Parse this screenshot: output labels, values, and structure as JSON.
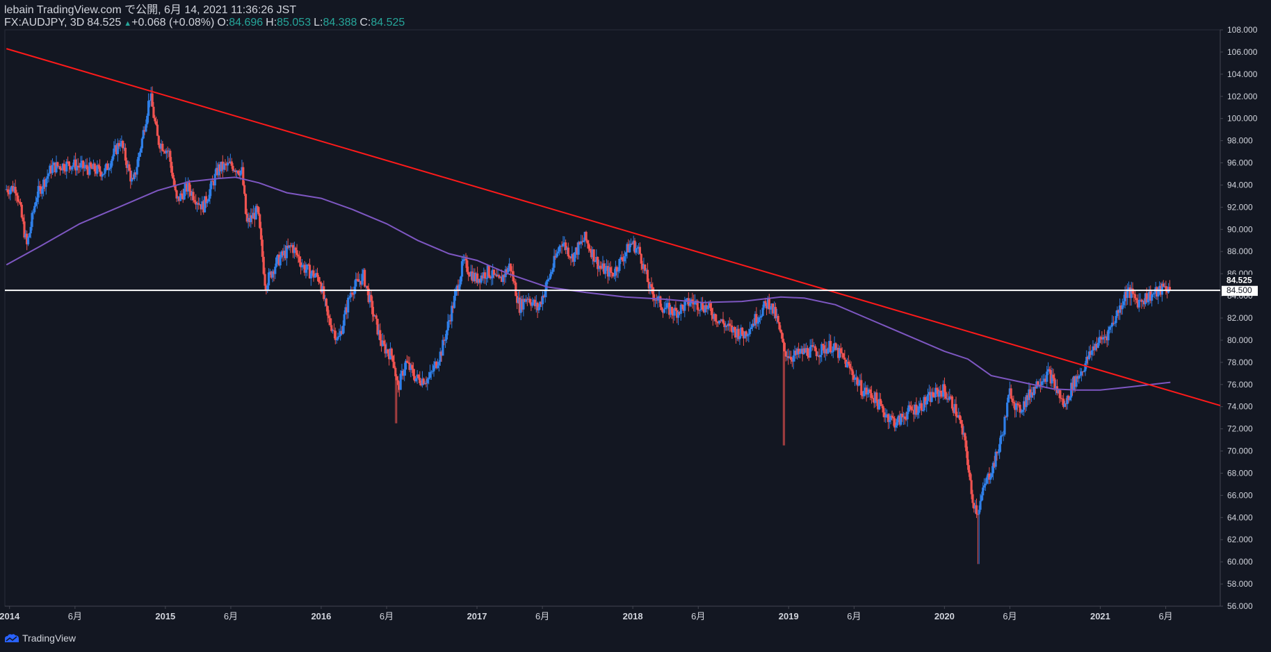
{
  "header": {
    "publish_line": "lebain TradingView.com で公開, 6月 14, 2021 11:36:26 JST",
    "symbol": "FX:AUDJPY, 3D",
    "last": "84.525",
    "change_arrow": "▲",
    "change": "+0.068 (+0.08%)",
    "o_label": "O:",
    "o_value": "84.696",
    "h_label": "H:",
    "h_value": "85.053",
    "l_label": "L:",
    "l_value": "84.388",
    "c_label": "C:",
    "c_value": "84.525"
  },
  "footer": {
    "brand": "TradingView",
    "logo_icon": "tradingview-logo-icon"
  },
  "colors": {
    "background": "#131722",
    "up": "#2f7fe8",
    "down": "#ef5350",
    "ma": "#7e57c2",
    "trendline": "#ff1a1a",
    "hline": "#ffffff",
    "axis_text": "#d1d4dc"
  },
  "chart_data": {
    "type": "candlestick",
    "symbol": "FX:AUDJPY",
    "interval": "3D",
    "ylim": [
      56,
      108
    ],
    "y_ticks": [
      "56.000",
      "58.000",
      "60.000",
      "62.000",
      "64.000",
      "66.000",
      "68.000",
      "70.000",
      "72.000",
      "74.000",
      "76.000",
      "78.000",
      "80.000",
      "82.000",
      "84.000",
      "86.000",
      "88.000",
      "90.000",
      "92.000",
      "94.000",
      "96.000",
      "98.000",
      "100.000",
      "102.000",
      "104.000",
      "106.000",
      "108.000"
    ],
    "x_ticks": [
      {
        "label": "2014",
        "t": 2014.0,
        "bold": true
      },
      {
        "label": "6月",
        "t": 2014.42,
        "bold": false
      },
      {
        "label": "2015",
        "t": 2015.0,
        "bold": true
      },
      {
        "label": "6月",
        "t": 2015.42,
        "bold": false
      },
      {
        "label": "2016",
        "t": 2016.0,
        "bold": true
      },
      {
        "label": "6月",
        "t": 2016.42,
        "bold": false
      },
      {
        "label": "2017",
        "t": 2017.0,
        "bold": true
      },
      {
        "label": "6月",
        "t": 2017.42,
        "bold": false
      },
      {
        "label": "2018",
        "t": 2018.0,
        "bold": true
      },
      {
        "label": "6月",
        "t": 2018.42,
        "bold": false
      },
      {
        "label": "2019",
        "t": 2019.0,
        "bold": true
      },
      {
        "label": "6月",
        "t": 2019.42,
        "bold": false
      },
      {
        "label": "2020",
        "t": 2020.0,
        "bold": true
      },
      {
        "label": "6月",
        "t": 2020.42,
        "bold": false
      },
      {
        "label": "2021",
        "t": 2021.0,
        "bold": true
      },
      {
        "label": "6月",
        "t": 2021.42,
        "bold": false
      }
    ],
    "price_path": [
      [
        2013.98,
        93.6
      ],
      [
        2014.05,
        93.8
      ],
      [
        2014.12,
        88.5
      ],
      [
        2014.18,
        93.0
      ],
      [
        2014.28,
        95.6
      ],
      [
        2014.4,
        95.9
      ],
      [
        2014.5,
        95.5
      ],
      [
        2014.62,
        95.2
      ],
      [
        2014.72,
        98.0
      ],
      [
        2014.8,
        94.0
      ],
      [
        2014.86,
        98.2
      ],
      [
        2014.91,
        102.2
      ],
      [
        2014.96,
        98.0
      ],
      [
        2015.03,
        97.0
      ],
      [
        2015.08,
        92.5
      ],
      [
        2015.15,
        93.8
      ],
      [
        2015.25,
        92.0
      ],
      [
        2015.35,
        95.5
      ],
      [
        2015.43,
        95.8
      ],
      [
        2015.5,
        95.2
      ],
      [
        2015.53,
        90.5
      ],
      [
        2015.6,
        91.7
      ],
      [
        2015.65,
        85.0
      ],
      [
        2015.72,
        87.0
      ],
      [
        2015.82,
        88.5
      ],
      [
        2015.9,
        86.5
      ],
      [
        2016.0,
        85.5
      ],
      [
        2016.05,
        82.0
      ],
      [
        2016.12,
        80.0
      ],
      [
        2016.2,
        84.5
      ],
      [
        2016.28,
        85.8
      ],
      [
        2016.33,
        83.0
      ],
      [
        2016.4,
        79.5
      ],
      [
        2016.47,
        78.5
      ],
      [
        2016.5,
        75.5
      ],
      [
        2016.55,
        78.0
      ],
      [
        2016.62,
        76.5
      ],
      [
        2016.7,
        76.5
      ],
      [
        2016.78,
        79.0
      ],
      [
        2016.86,
        83.5
      ],
      [
        2016.92,
        87.0
      ],
      [
        2017.0,
        85.5
      ],
      [
        2017.08,
        86.2
      ],
      [
        2017.15,
        85.2
      ],
      [
        2017.22,
        86.8
      ],
      [
        2017.28,
        83.0
      ],
      [
        2017.33,
        84.0
      ],
      [
        2017.4,
        82.8
      ],
      [
        2017.48,
        86.0
      ],
      [
        2017.55,
        89.0
      ],
      [
        2017.62,
        87.5
      ],
      [
        2017.7,
        89.2
      ],
      [
        2017.8,
        86.5
      ],
      [
        2017.88,
        86.0
      ],
      [
        2018.0,
        88.8
      ],
      [
        2018.05,
        88.0
      ],
      [
        2018.12,
        84.5
      ],
      [
        2018.2,
        83.0
      ],
      [
        2018.28,
        82.5
      ],
      [
        2018.38,
        83.5
      ],
      [
        2018.48,
        83.0
      ],
      [
        2018.55,
        82.0
      ],
      [
        2018.63,
        81.0
      ],
      [
        2018.72,
        80.5
      ],
      [
        2018.8,
        82.0
      ],
      [
        2018.88,
        83.5
      ],
      [
        2018.93,
        82.0
      ],
      [
        2018.98,
        79.0
      ],
      [
        2019.03,
        78.5
      ],
      [
        2019.12,
        79.0
      ],
      [
        2019.2,
        79.0
      ],
      [
        2019.28,
        79.5
      ],
      [
        2019.35,
        78.5
      ],
      [
        2019.42,
        77.0
      ],
      [
        2019.48,
        75.5
      ],
      [
        2019.55,
        75.0
      ],
      [
        2019.62,
        73.5
      ],
      [
        2019.7,
        72.5
      ],
      [
        2019.77,
        73.5
      ],
      [
        2019.85,
        74.0
      ],
      [
        2019.93,
        75.0
      ],
      [
        2020.0,
        75.5
      ],
      [
        2020.05,
        74.5
      ],
      [
        2020.1,
        73.0
      ],
      [
        2020.15,
        70.0
      ],
      [
        2020.18,
        66.0
      ],
      [
        2020.22,
        64.5
      ],
      [
        2020.27,
        67.0
      ],
      [
        2020.33,
        69.0
      ],
      [
        2020.38,
        71.5
      ],
      [
        2020.43,
        75.5
      ],
      [
        2020.48,
        73.5
      ],
      [
        2020.55,
        75.0
      ],
      [
        2020.62,
        76.5
      ],
      [
        2020.68,
        77.0
      ],
      [
        2020.73,
        75.5
      ],
      [
        2020.78,
        74.0
      ],
      [
        2020.83,
        76.0
      ],
      [
        2020.9,
        77.5
      ],
      [
        2020.97,
        79.5
      ],
      [
        2021.05,
        80.5
      ],
      [
        2021.12,
        82.5
      ],
      [
        2021.18,
        84.5
      ],
      [
        2021.25,
        83.5
      ],
      [
        2021.32,
        84.0
      ],
      [
        2021.38,
        84.3
      ],
      [
        2021.42,
        84.8
      ],
      [
        2021.45,
        84.525
      ]
    ],
    "extreme_wicks": [
      {
        "t": 2014.91,
        "value": 102.6
      },
      {
        "t": 2016.48,
        "value": 72.5
      },
      {
        "t": 2018.97,
        "value": 70.5
      },
      {
        "t": 2020.22,
        "value": 59.8
      }
    ],
    "moving_average": [
      [
        2013.98,
        86.8
      ],
      [
        2014.2,
        88.5
      ],
      [
        2014.45,
        90.5
      ],
      [
        2014.7,
        92.0
      ],
      [
        2014.95,
        93.5
      ],
      [
        2015.15,
        94.3
      ],
      [
        2015.35,
        94.6
      ],
      [
        2015.45,
        94.7
      ],
      [
        2015.6,
        94.2
      ],
      [
        2015.78,
        93.3
      ],
      [
        2016.0,
        92.8
      ],
      [
        2016.2,
        91.8
      ],
      [
        2016.42,
        90.5
      ],
      [
        2016.62,
        89.0
      ],
      [
        2016.82,
        87.8
      ],
      [
        2017.0,
        87.2
      ],
      [
        2017.2,
        86.0
      ],
      [
        2017.45,
        84.8
      ],
      [
        2017.7,
        84.3
      ],
      [
        2017.95,
        83.9
      ],
      [
        2018.2,
        83.7
      ],
      [
        2018.45,
        83.4
      ],
      [
        2018.7,
        83.5
      ],
      [
        2018.95,
        83.9
      ],
      [
        2019.1,
        83.8
      ],
      [
        2019.3,
        83.2
      ],
      [
        2019.5,
        82.0
      ],
      [
        2019.75,
        80.5
      ],
      [
        2020.0,
        79.0
      ],
      [
        2020.15,
        78.3
      ],
      [
        2020.3,
        76.8
      ],
      [
        2020.5,
        76.2
      ],
      [
        2020.7,
        75.6
      ],
      [
        2020.85,
        75.5
      ],
      [
        2021.0,
        75.5
      ],
      [
        2021.2,
        75.8
      ],
      [
        2021.45,
        76.2
      ]
    ],
    "trendline": {
      "t1": 2013.98,
      "v1": 106.3,
      "t2": 2021.77,
      "v2": 74.1
    },
    "horizontal_line": {
      "value": 84.5,
      "label": "84.500"
    },
    "last_price": {
      "value": 84.525,
      "label": "84.525"
    }
  }
}
